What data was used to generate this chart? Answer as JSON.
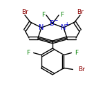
{
  "bg_color": "#ffffff",
  "bond_color": "#000000",
  "atom_colors": {
    "Br": "#8B0000",
    "F": "#008000",
    "N": "#0000CD",
    "B": "#0000CD",
    "C": "#000000"
  },
  "figsize": [
    1.52,
    1.52
  ],
  "dpi": 100,
  "lw": 1.0
}
